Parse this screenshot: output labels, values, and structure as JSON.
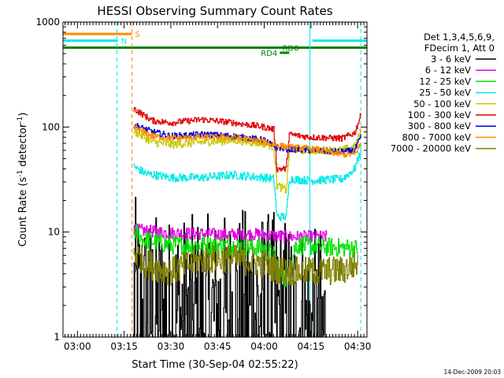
{
  "chart_data": {
    "type": "line",
    "title": "HESSI Observing Summary Count Rates",
    "xlabel": "Start Time (30-Sep-04 02:55:22)",
    "ylabel_parts": [
      "Count Rate (s",
      "-1",
      " detector",
      "-1",
      ")"
    ],
    "yscale": "log",
    "ylim": [
      1,
      1000
    ],
    "yticks": [
      {
        "value": 1,
        "label": "1"
      },
      {
        "value": 10,
        "label": "10"
      },
      {
        "value": 100,
        "label": "100"
      },
      {
        "value": 1000,
        "label": "1000"
      }
    ],
    "xlim": [
      "02:55:22",
      "04:33:00"
    ],
    "xticks": [
      {
        "time": "03:00",
        "label": "03:00"
      },
      {
        "time": "03:15",
        "label": "03:15"
      },
      {
        "time": "03:30",
        "label": "03:30"
      },
      {
        "time": "03:45",
        "label": "03:45"
      },
      {
        "time": "04:00",
        "label": "04:00"
      },
      {
        "time": "04:15",
        "label": "04:15"
      },
      {
        "time": "04:30",
        "label": "04:30"
      }
    ],
    "legend": {
      "placement": "right",
      "header": [
        "Det 1,3,4,5,6,9,",
        "FDecim 1, Att 0"
      ],
      "entries": [
        {
          "label": "3 - 6 keV",
          "color": "#000000"
        },
        {
          "label": "6 - 12 keV",
          "color": "#e000e0"
        },
        {
          "label": "12 - 25 keV",
          "color": "#00e000"
        },
        {
          "label": "25 - 50 keV",
          "color": "#00e8e8"
        },
        {
          "label": "50 - 100 keV",
          "color": "#c8c800"
        },
        {
          "label": "100 - 300 keV",
          "color": "#e00000"
        },
        {
          "label": "300 - 800 keV",
          "color": "#0000d0"
        },
        {
          "label": "800 - 7000 keV",
          "color": "#ff8c00"
        },
        {
          "label": "7000 - 20000 keV",
          "color": "#808000"
        }
      ]
    },
    "flags": [
      {
        "label": "S",
        "color": "#ff8c00",
        "start": "02:55:22",
        "end": "03:17:30",
        "level": 770
      },
      {
        "label": "N",
        "color": "#00e8e8",
        "start": "02:55:22",
        "end": "03:13:00",
        "level": 665
      },
      {
        "label": "",
        "color": "#00e8e8",
        "start": "04:15:30",
        "end": "04:33:00",
        "level": 665
      },
      {
        "label": "RD0",
        "color": "#008000",
        "start": "02:55:22",
        "end": "04:33:00",
        "level": 570
      },
      {
        "label": "RD4",
        "color": "#008000",
        "start": "04:05:00",
        "end": "04:08:00",
        "level": 510
      }
    ],
    "vertical_markers": [
      {
        "time": "03:12:40",
        "color": "#00e8e8",
        "style": "dashed"
      },
      {
        "time": "03:17:30",
        "color": "#ff8c00",
        "style": "dashed"
      },
      {
        "time": "04:14:40",
        "color": "#00e8e8",
        "style": "solid"
      },
      {
        "time": "04:31:00",
        "color": "#00e8e8",
        "style": "dashed"
      }
    ],
    "series": [
      {
        "name": "3 - 6 keV",
        "color": "#000000",
        "noise": 1.0,
        "points": [
          [
            "03:18:00",
            2.5
          ],
          [
            "03:20:00",
            1.6
          ],
          [
            "03:30:00",
            1.5
          ],
          [
            "03:45:00",
            1.5
          ],
          [
            "03:55:00",
            1.8
          ],
          [
            "04:03:00",
            1.6
          ],
          [
            "04:07:00",
            1.5
          ],
          [
            "04:10:00",
            1.3
          ],
          [
            "04:20:00",
            1.0
          ]
        ]
      },
      {
        "name": "6 - 12 keV",
        "color": "#e000e0",
        "noise": 0.06,
        "points": [
          [
            "03:18:00",
            10.5
          ],
          [
            "03:30:00",
            9.8
          ],
          [
            "03:45:00",
            9.5
          ],
          [
            "04:00:00",
            9.5
          ],
          [
            "04:03:00",
            9.2
          ],
          [
            "04:07:00",
            9.0
          ],
          [
            "04:10:00",
            9.0
          ],
          [
            "04:20:00",
            9.0
          ]
        ]
      },
      {
        "name": "12 - 25 keV",
        "color": "#00e000",
        "noise": 0.09,
        "points": [
          [
            "03:18:00",
            10.5
          ],
          [
            "03:21:00",
            8.5
          ],
          [
            "03:30:00",
            7.5
          ],
          [
            "03:45:00",
            7.5
          ],
          [
            "04:00:00",
            7.0
          ],
          [
            "04:03:00",
            6.0
          ],
          [
            "04:05:00",
            4.0
          ],
          [
            "04:07:00",
            3.5
          ],
          [
            "04:10:00",
            7.5
          ],
          [
            "04:20:00",
            7.2
          ],
          [
            "04:30:00",
            7.0
          ]
        ]
      },
      {
        "name": "25 - 50 keV",
        "color": "#00e8e8",
        "noise": 0.04,
        "points": [
          [
            "03:18:00",
            42
          ],
          [
            "03:22:00",
            36
          ],
          [
            "03:30:00",
            33
          ],
          [
            "03:40:00",
            33
          ],
          [
            "03:50:00",
            35
          ],
          [
            "04:00:00",
            33
          ],
          [
            "04:03:00",
            32
          ],
          [
            "04:04:00",
            14
          ],
          [
            "04:07:00",
            14
          ],
          [
            "04:08:00",
            32
          ],
          [
            "04:15:00",
            31
          ],
          [
            "04:25:00",
            32
          ],
          [
            "04:29:00",
            40
          ],
          [
            "04:31:00",
            60
          ]
        ]
      },
      {
        "name": "50 - 100 keV",
        "color": "#c8c800",
        "noise": 0.04,
        "points": [
          [
            "03:18:00",
            92
          ],
          [
            "03:24:00",
            72
          ],
          [
            "03:30:00",
            68
          ],
          [
            "03:40:00",
            72
          ],
          [
            "03:50:00",
            75
          ],
          [
            "04:00:00",
            70
          ],
          [
            "04:03:00",
            65
          ],
          [
            "04:04:00",
            28
          ],
          [
            "04:07:00",
            25
          ],
          [
            "04:08:00",
            62
          ],
          [
            "04:15:00",
            60
          ],
          [
            "04:25:00",
            60
          ],
          [
            "04:29:00",
            65
          ],
          [
            "04:31:00",
            90
          ]
        ]
      },
      {
        "name": "100 - 300 keV",
        "color": "#e00000",
        "noise": 0.03,
        "points": [
          [
            "03:18:00",
            150
          ],
          [
            "03:24:00",
            115
          ],
          [
            "03:30:00",
            110
          ],
          [
            "03:40:00",
            118
          ],
          [
            "03:50:00",
            110
          ],
          [
            "04:00:00",
            100
          ],
          [
            "04:03:00",
            95
          ],
          [
            "04:04:00",
            40
          ],
          [
            "04:07:00",
            40
          ],
          [
            "04:08:00",
            85
          ],
          [
            "04:15:00",
            80
          ],
          [
            "04:25:00",
            78
          ],
          [
            "04:29:00",
            88
          ],
          [
            "04:31:00",
            130
          ]
        ]
      },
      {
        "name": "300 - 800 keV",
        "color": "#0000d0",
        "noise": 0.03,
        "points": [
          [
            "03:18:00",
            105
          ],
          [
            "03:24:00",
            90
          ],
          [
            "03:30:00",
            82
          ],
          [
            "03:40:00",
            85
          ],
          [
            "03:50:00",
            82
          ],
          [
            "04:00:00",
            75
          ],
          [
            "04:03:00",
            65
          ],
          [
            "04:07:00",
            62
          ],
          [
            "04:15:00",
            60
          ],
          [
            "04:25:00",
            58
          ],
          [
            "04:29:00",
            60
          ],
          [
            "04:31:00",
            80
          ]
        ]
      },
      {
        "name": "800 - 7000 keV",
        "color": "#ff8c00",
        "noise": 0.03,
        "points": [
          [
            "03:18:00",
            100
          ],
          [
            "03:24:00",
            82
          ],
          [
            "03:30:00",
            78
          ],
          [
            "03:40:00",
            80
          ],
          [
            "03:50:00",
            80
          ],
          [
            "04:00:00",
            72
          ],
          [
            "04:03:00",
            68
          ],
          [
            "04:07:00",
            65
          ],
          [
            "04:15:00",
            62
          ],
          [
            "04:25:00",
            55
          ],
          [
            "04:29:00",
            55
          ],
          [
            "04:31:00",
            70
          ]
        ]
      },
      {
        "name": "7000 - 20000 keV",
        "color": "#808000",
        "noise": 0.14,
        "points": [
          [
            "03:18:00",
            6.5
          ],
          [
            "03:22:00",
            5.0
          ],
          [
            "03:30:00",
            4.2
          ],
          [
            "03:40:00",
            5.5
          ],
          [
            "03:50:00",
            5.5
          ],
          [
            "04:00:00",
            5.0
          ],
          [
            "04:03:00",
            4.5
          ],
          [
            "04:07:00",
            4.2
          ],
          [
            "04:15:00",
            4.2
          ],
          [
            "04:25:00",
            4.3
          ],
          [
            "04:30:00",
            5.0
          ]
        ]
      }
    ]
  },
  "footer_date": "14-Dec-2009 20:03"
}
